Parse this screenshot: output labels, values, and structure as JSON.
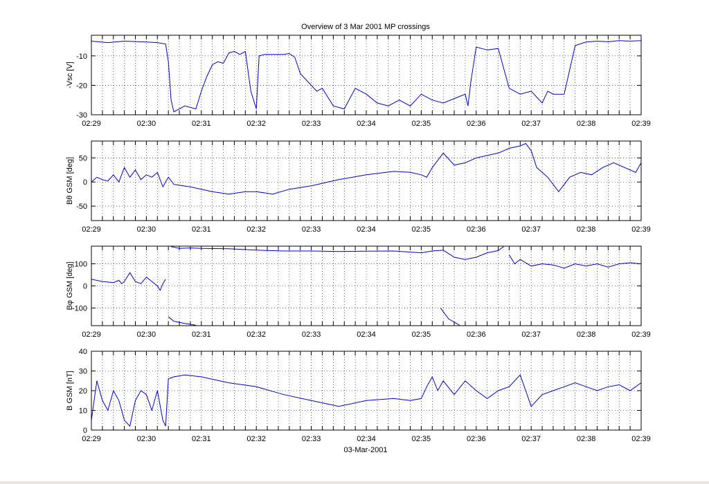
{
  "figure": {
    "title": "Overview of 3 Mar 2001 MP crossings",
    "xlabel": "03-Mar-2001",
    "line_color": "#0000cc"
  },
  "chart_data": [
    {
      "type": "line",
      "ylabel": "-Vsc [V]",
      "ylim": [
        -30,
        -3
      ],
      "yticks": [
        -10,
        -20,
        -30
      ],
      "xlim": [
        "02:29",
        "02:39"
      ],
      "xticks": [
        "02:29",
        "02:30",
        "02:31",
        "02:32",
        "02:33",
        "02:34",
        "02:35",
        "02:36",
        "02:37",
        "02:38",
        "02:39"
      ],
      "grid": true,
      "series": [
        {
          "x": [
            0,
            0.3,
            0.6,
            1.0,
            1.2,
            1.35,
            1.4,
            1.45,
            1.5,
            1.7,
            1.9,
            2.0,
            2.1,
            2.2,
            2.3,
            2.4,
            2.5,
            2.6,
            2.7,
            2.8,
            2.9,
            3.0,
            3.05,
            3.15,
            3.3,
            3.5,
            3.6,
            3.7,
            3.8,
            4.0,
            4.1,
            4.2,
            4.3,
            4.4,
            4.6,
            4.8,
            5.0,
            5.2,
            5.4,
            5.6,
            5.8,
            6.0,
            6.2,
            6.4,
            6.6,
            6.8,
            6.85,
            6.9,
            7.0,
            7.1,
            7.2,
            7.4,
            7.6,
            7.8,
            8.0,
            8.2,
            8.3,
            8.4,
            8.6,
            8.8,
            9.0,
            9.2,
            9.4,
            9.6,
            9.8,
            10.0
          ],
          "y": [
            -5,
            -5.5,
            -5,
            -5.3,
            -5.5,
            -6,
            -12,
            -25,
            -29,
            -27,
            -28,
            -22,
            -17,
            -13,
            -12,
            -12.5,
            -9,
            -8.5,
            -9.5,
            -8.5,
            -22,
            -28,
            -10,
            -9.5,
            -9.5,
            -9.5,
            -9.2,
            -10.5,
            -16,
            -20,
            -22,
            -21,
            -24,
            -27,
            -28,
            -21,
            -23,
            -26,
            -27,
            -25,
            -27,
            -23,
            -25,
            -26,
            -24.5,
            -23,
            -27,
            -19,
            -7,
            -7.5,
            -8,
            -7.5,
            -21,
            -23,
            -22,
            -26,
            -22,
            -23,
            -23,
            -6.5,
            -5.3,
            -5,
            -5.2,
            -4.8,
            -5,
            -4.8
          ]
        }
      ]
    },
    {
      "type": "line",
      "ylabel": "Bθ GSM [deg]",
      "ylim": [
        -80,
        85
      ],
      "yticks": [
        50,
        0,
        -50
      ],
      "xlim": [
        "02:29",
        "02:39"
      ],
      "xticks": [
        "02:29",
        "02:30",
        "02:31",
        "02:32",
        "02:33",
        "02:34",
        "02:35",
        "02:36",
        "02:37",
        "02:38",
        "02:39"
      ],
      "grid": true,
      "series": [
        {
          "x": [
            0,
            0.1,
            0.2,
            0.3,
            0.4,
            0.5,
            0.6,
            0.7,
            0.8,
            0.9,
            1.0,
            1.1,
            1.2,
            1.3,
            1.4,
            1.5,
            1.8,
            2.0,
            2.2,
            2.5,
            2.8,
            3.0,
            3.3,
            3.6,
            4.0,
            4.5,
            5.0,
            5.5,
            5.8,
            6.0,
            6.1,
            6.2,
            6.3,
            6.4,
            6.6,
            6.8,
            7.0,
            7.2,
            7.4,
            7.6,
            7.8,
            7.9,
            8.0,
            8.1,
            8.2,
            8.3,
            8.5,
            8.7,
            8.9,
            9.1,
            9.3,
            9.5,
            9.7,
            9.9,
            10.0
          ],
          "y": [
            0,
            10,
            5,
            2,
            15,
            0,
            30,
            10,
            25,
            5,
            15,
            10,
            20,
            -10,
            10,
            -5,
            -10,
            -15,
            -20,
            -25,
            -20,
            -20,
            -25,
            -15,
            -8,
            5,
            15,
            22,
            20,
            15,
            10,
            30,
            45,
            60,
            35,
            40,
            50,
            55,
            60,
            70,
            75,
            80,
            65,
            30,
            20,
            10,
            -20,
            10,
            20,
            15,
            30,
            40,
            30,
            20,
            40
          ]
        }
      ]
    },
    {
      "type": "line",
      "ylabel": "Bφ GSM [deg]",
      "ylim": [
        -180,
        180
      ],
      "yticks": [
        100,
        0,
        -100
      ],
      "xlim": [
        "02:29",
        "02:39"
      ],
      "xticks": [
        "02:29",
        "02:30",
        "02:31",
        "02:32",
        "02:33",
        "02:34",
        "02:35",
        "02:36",
        "02:37",
        "02:38",
        "02:39"
      ],
      "grid": true,
      "series": [
        {
          "x": [
            0,
            0.2,
            0.4,
            0.5,
            0.55,
            0.6,
            0.7,
            0.8,
            0.9,
            1.0,
            1.1,
            1.2,
            1.25,
            1.3,
            1.35
          ],
          "y": [
            30,
            20,
            15,
            25,
            10,
            20,
            60,
            20,
            10,
            40,
            20,
            0,
            -20,
            10,
            30
          ]
        },
        {
          "x": [
            1.45,
            1.6,
            1.8,
            2.0,
            2.5,
            3.0,
            3.5,
            4.0,
            4.5,
            5.0,
            5.5,
            6.0,
            6.2,
            6.4,
            6.6,
            6.8,
            7.0,
            7.2,
            7.4,
            7.5
          ],
          "y": [
            178,
            170,
            172,
            170,
            168,
            162,
            158,
            158,
            156,
            157,
            158,
            150,
            158,
            162,
            130,
            120,
            130,
            150,
            160,
            178
          ]
        },
        {
          "x": [
            7.6,
            7.7,
            7.8,
            8.0,
            8.2,
            8.4,
            8.6,
            8.8,
            9.0,
            9.2,
            9.4,
            9.6,
            9.8,
            10.0
          ],
          "y": [
            140,
            100,
            120,
            90,
            100,
            95,
            80,
            100,
            90,
            100,
            85,
            100,
            105,
            100
          ]
        },
        {
          "x": [
            1.4,
            1.5,
            1.7,
            1.9
          ],
          "y": [
            -140,
            -160,
            -170,
            -178
          ]
        },
        {
          "x": [
            6.35,
            6.5,
            6.7
          ],
          "y": [
            -100,
            -150,
            -178
          ]
        }
      ]
    },
    {
      "type": "line",
      "ylabel": "B GSM [nT]",
      "ylim": [
        0,
        40
      ],
      "yticks": [
        40,
        30,
        20,
        10,
        0
      ],
      "xlim": [
        "02:29",
        "02:39"
      ],
      "xticks": [
        "02:29",
        "02:30",
        "02:31",
        "02:32",
        "02:33",
        "02:34",
        "02:35",
        "02:36",
        "02:37",
        "02:38",
        "02:39"
      ],
      "grid": true,
      "series": [
        {
          "x": [
            0,
            0.1,
            0.2,
            0.3,
            0.4,
            0.5,
            0.6,
            0.7,
            0.8,
            0.9,
            1.0,
            1.1,
            1.2,
            1.3,
            1.35,
            1.4,
            1.5,
            1.7,
            2.0,
            2.5,
            3.0,
            3.5,
            4.0,
            4.5,
            5.0,
            5.5,
            5.8,
            6.0,
            6.1,
            6.2,
            6.3,
            6.4,
            6.6,
            6.8,
            7.0,
            7.2,
            7.4,
            7.6,
            7.8,
            8.0,
            8.2,
            8.4,
            8.6,
            8.8,
            9.0,
            9.2,
            9.4,
            9.6,
            9.8,
            10.0
          ],
          "y": [
            5,
            25,
            15,
            10,
            20,
            15,
            5,
            2,
            15,
            20,
            18,
            10,
            20,
            5,
            2,
            26,
            27,
            28,
            27,
            24,
            22,
            18,
            15,
            12,
            15,
            16,
            15,
            16,
            22,
            27,
            20,
            25,
            18,
            25,
            20,
            16,
            20,
            22,
            28,
            12,
            18,
            20,
            22,
            24,
            22,
            20,
            22,
            23,
            20,
            24
          ]
        }
      ]
    }
  ]
}
